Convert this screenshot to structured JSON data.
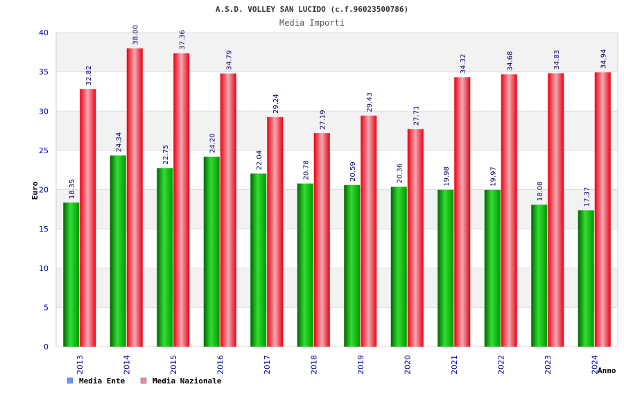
{
  "chart_data": {
    "type": "bar",
    "title": "A.S.D. VOLLEY SAN LUCIDO (c.f.96023500786)",
    "subtitle": "Media Importi",
    "xlabel": "Anno",
    "ylabel": "Euro",
    "ylim": [
      0,
      40
    ],
    "yticks": [
      0,
      5,
      10,
      15,
      20,
      25,
      30,
      35,
      40
    ],
    "categories": [
      "2013",
      "2014",
      "2015",
      "2016",
      "2017",
      "2018",
      "2019",
      "2020",
      "2021",
      "2022",
      "2023",
      "2024"
    ],
    "series": [
      {
        "name": "Media Ente",
        "color": "#00b000",
        "legend_color": "#6699ff",
        "values": [
          18.35,
          24.34,
          22.75,
          24.2,
          22.04,
          20.78,
          20.59,
          20.36,
          19.98,
          19.97,
          18.08,
          17.37
        ],
        "labels": [
          "18.35",
          "24.34",
          "22.75",
          "24.20",
          "22.04",
          "20.78",
          "20.59",
          "20.36",
          "19.98",
          "19.97",
          "18.08",
          "17.37"
        ]
      },
      {
        "name": "Media Nazionale",
        "color": "#ee1122",
        "legend_color": "#ee88aa",
        "values": [
          32.82,
          38.0,
          37.36,
          34.79,
          29.24,
          27.19,
          29.43,
          27.71,
          34.32,
          34.68,
          34.83,
          34.94
        ],
        "labels": [
          "32.82",
          "38.00",
          "37.36",
          "34.79",
          "29.24",
          "27.19",
          "29.43",
          "27.71",
          "34.32",
          "34.68",
          "34.83",
          "34.94"
        ]
      }
    ],
    "grid": true,
    "legend": "bottom-left"
  }
}
